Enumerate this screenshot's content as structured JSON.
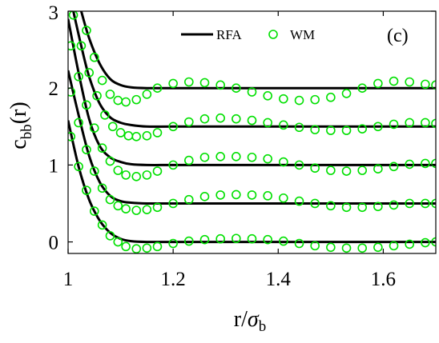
{
  "chart_data": {
    "type": "line",
    "panel_label": "(c)",
    "xlabel_main": "r/",
    "xlabel_symbol": "σ",
    "xlabel_sub": "b",
    "ylabel_main": "c",
    "ylabel_sub": "bb",
    "ylabel_arg": "(r)",
    "xlim": [
      1.0,
      1.7
    ],
    "ylim": [
      -0.15,
      3.0
    ],
    "xticks": [
      1,
      1.2,
      1.4,
      1.6
    ],
    "xtick_labels": [
      "1",
      "1.2",
      "1.4",
      "1.6"
    ],
    "yticks": [
      0,
      1,
      2,
      3
    ],
    "ytick_labels": [
      "0",
      "1",
      "2",
      "3"
    ],
    "legend_position": "top-center",
    "legend": [
      {
        "name": "RFA",
        "style": "line",
        "color": "#000000"
      },
      {
        "name": "WM",
        "style": "circle",
        "color": "#00e000"
      }
    ],
    "series": [
      {
        "name": "RFA",
        "offset": 0.0,
        "x": [
          1.0,
          1.02,
          1.04,
          1.06,
          1.08,
          1.1,
          1.12,
          1.15,
          1.2,
          1.3,
          1.4,
          1.5,
          1.6,
          1.7
        ],
        "y": [
          1.58,
          0.98,
          0.55,
          0.28,
          0.12,
          0.04,
          0.01,
          0.0,
          0.0,
          0.0,
          0.0,
          0.0,
          0.0,
          0.0
        ]
      },
      {
        "name": "WM",
        "offset": 0.0,
        "x": [
          1.005,
          1.02,
          1.035,
          1.05,
          1.065,
          1.08,
          1.095,
          1.11,
          1.13,
          1.15,
          1.17,
          1.2,
          1.23,
          1.26,
          1.29,
          1.32,
          1.35,
          1.38,
          1.41,
          1.44,
          1.47,
          1.5,
          1.53,
          1.56,
          1.59,
          1.62,
          1.65,
          1.68,
          1.7
        ],
        "y": [
          1.37,
          0.98,
          0.67,
          0.4,
          0.22,
          0.08,
          0.0,
          -0.06,
          -0.09,
          -0.08,
          -0.06,
          -0.02,
          0.01,
          0.03,
          0.04,
          0.045,
          0.04,
          0.03,
          0.01,
          -0.02,
          -0.05,
          -0.07,
          -0.08,
          -0.08,
          -0.07,
          -0.05,
          -0.03,
          -0.01,
          0.0
        ]
      },
      {
        "name": "RFA",
        "offset": 0.5,
        "x": [
          1.0,
          1.02,
          1.04,
          1.06,
          1.08,
          1.1,
          1.12,
          1.15,
          1.2,
          1.3,
          1.4,
          1.5,
          1.6,
          1.7
        ],
        "y": [
          2.23,
          1.65,
          1.12,
          0.78,
          0.6,
          0.53,
          0.51,
          0.5,
          0.5,
          0.5,
          0.5,
          0.5,
          0.5,
          0.5
        ]
      },
      {
        "name": "WM",
        "offset": 0.5,
        "x": [
          1.005,
          1.02,
          1.035,
          1.05,
          1.065,
          1.08,
          1.095,
          1.11,
          1.13,
          1.15,
          1.17,
          1.2,
          1.23,
          1.26,
          1.29,
          1.32,
          1.35,
          1.38,
          1.41,
          1.44,
          1.47,
          1.5,
          1.53,
          1.56,
          1.59,
          1.62,
          1.65,
          1.68,
          1.7
        ],
        "y": [
          1.95,
          1.55,
          1.2,
          0.92,
          0.7,
          0.55,
          0.47,
          0.43,
          0.41,
          0.42,
          0.45,
          0.5,
          0.55,
          0.59,
          0.61,
          0.615,
          0.61,
          0.6,
          0.57,
          0.53,
          0.5,
          0.47,
          0.45,
          0.45,
          0.46,
          0.48,
          0.5,
          0.5,
          0.5
        ]
      },
      {
        "name": "RFA",
        "offset": 1.0,
        "x": [
          1.0,
          1.02,
          1.04,
          1.06,
          1.08,
          1.1,
          1.12,
          1.15,
          1.2,
          1.3,
          1.4,
          1.5,
          1.6,
          1.7
        ],
        "y": [
          2.9,
          2.2,
          1.6,
          1.25,
          1.1,
          1.04,
          1.01,
          1.0,
          1.0,
          1.0,
          1.0,
          1.0,
          1.0,
          1.0
        ]
      },
      {
        "name": "WM",
        "offset": 1.0,
        "x": [
          1.005,
          1.02,
          1.035,
          1.05,
          1.065,
          1.08,
          1.095,
          1.11,
          1.13,
          1.15,
          1.17,
          1.2,
          1.23,
          1.26,
          1.29,
          1.32,
          1.35,
          1.38,
          1.41,
          1.44,
          1.47,
          1.5,
          1.53,
          1.56,
          1.59,
          1.62,
          1.65,
          1.68,
          1.7
        ],
        "y": [
          2.55,
          2.15,
          1.78,
          1.48,
          1.22,
          1.05,
          0.93,
          0.87,
          0.85,
          0.87,
          0.92,
          1.0,
          1.06,
          1.1,
          1.11,
          1.11,
          1.1,
          1.08,
          1.04,
          1.0,
          0.96,
          0.93,
          0.92,
          0.93,
          0.95,
          0.98,
          1.01,
          1.02,
          1.02
        ]
      },
      {
        "name": "RFA",
        "offset": 1.5,
        "x": [
          1.01,
          1.025,
          1.04,
          1.06,
          1.08,
          1.1,
          1.12,
          1.15,
          1.2,
          1.3,
          1.4,
          1.5,
          1.6,
          1.7
        ],
        "y": [
          3.0,
          2.55,
          2.15,
          1.8,
          1.62,
          1.55,
          1.52,
          1.5,
          1.5,
          1.5,
          1.5,
          1.5,
          1.5,
          1.5
        ]
      },
      {
        "name": "WM",
        "offset": 1.5,
        "x": [
          1.01,
          1.025,
          1.04,
          1.055,
          1.07,
          1.085,
          1.1,
          1.115,
          1.13,
          1.15,
          1.17,
          1.2,
          1.23,
          1.26,
          1.29,
          1.32,
          1.35,
          1.38,
          1.41,
          1.44,
          1.47,
          1.5,
          1.53,
          1.56,
          1.59,
          1.62,
          1.65,
          1.68,
          1.7
        ],
        "y": [
          2.95,
          2.55,
          2.2,
          1.9,
          1.65,
          1.5,
          1.42,
          1.38,
          1.37,
          1.38,
          1.42,
          1.5,
          1.56,
          1.6,
          1.61,
          1.6,
          1.58,
          1.55,
          1.52,
          1.49,
          1.46,
          1.45,
          1.45,
          1.47,
          1.5,
          1.53,
          1.55,
          1.55,
          1.54
        ]
      },
      {
        "name": "RFA",
        "offset": 2.0,
        "x": [
          1.025,
          1.04,
          1.06,
          1.08,
          1.1,
          1.12,
          1.15,
          1.2,
          1.3,
          1.4,
          1.5,
          1.6,
          1.7
        ],
        "y": [
          3.0,
          2.65,
          2.32,
          2.12,
          2.04,
          2.01,
          2.0,
          2.0,
          2.0,
          2.0,
          2.0,
          2.0,
          2.0
        ]
      },
      {
        "name": "WM",
        "offset": 2.0,
        "x": [
          1.035,
          1.05,
          1.065,
          1.08,
          1.095,
          1.11,
          1.13,
          1.15,
          1.17,
          1.2,
          1.23,
          1.26,
          1.29,
          1.32,
          1.35,
          1.38,
          1.41,
          1.44,
          1.47,
          1.5,
          1.53,
          1.56,
          1.59,
          1.62,
          1.65,
          1.68,
          1.7
        ],
        "y": [
          2.75,
          2.4,
          2.1,
          1.92,
          1.84,
          1.82,
          1.85,
          1.92,
          2.0,
          2.06,
          2.08,
          2.07,
          2.04,
          2.0,
          1.95,
          1.9,
          1.86,
          1.84,
          1.85,
          1.88,
          1.93,
          2.0,
          2.06,
          2.09,
          2.08,
          2.05,
          2.04
        ]
      }
    ]
  }
}
